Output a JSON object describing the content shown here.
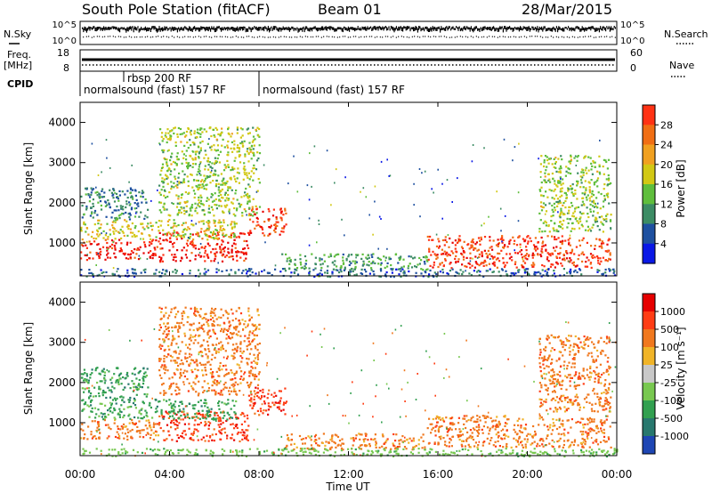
{
  "header": {
    "title": "South Pole Station (fitACF)",
    "beam": "Beam 01",
    "date": "28/Mar/2015"
  },
  "aux_panels": {
    "n_sky_label": "N.Sky",
    "n_search_label": "N.Search",
    "freq_label_line1": "Freq.",
    "freq_label_line2": "[MHz]",
    "nave_label": "Nave",
    "cpid_label": "CPID",
    "noise_left_ticks": [
      "10^5",
      "10^0"
    ],
    "noise_right_ticks": [
      "10^5",
      "10^0"
    ],
    "freq_ticks": [
      "18",
      "8"
    ],
    "nave_ticks": [
      "60",
      "0"
    ],
    "cpid_segments": [
      {
        "label": "normalsound (fast) 157 RF",
        "start_h": 0.0,
        "end_h": 1.9
      },
      {
        "label": "rbsp 200 RF",
        "start_h": 1.9,
        "end_h": 7.8
      },
      {
        "label": "normalsound (fast) 157 RF",
        "start_h": 7.8,
        "end_h": 24.0
      }
    ]
  },
  "x_axis": {
    "label": "Time UT",
    "ticks": [
      "00:00",
      "04:00",
      "08:00",
      "12:00",
      "16:00",
      "20:00",
      "00:00"
    ]
  },
  "y_axis": {
    "label": "Slant Range [km]",
    "ticks": [
      "1000",
      "2000",
      "3000",
      "4000"
    ]
  },
  "power_colorbar": {
    "label": "Power [dB]",
    "ticks": [
      "4",
      "8",
      "12",
      "16",
      "20",
      "24",
      "28"
    ],
    "colors": [
      "#0a18e6",
      "#1e50a0",
      "#3c8c64",
      "#5fbe3c",
      "#d2c814",
      "#f0a020",
      "#f06e14",
      "#ff3214",
      "#e60000"
    ]
  },
  "velocity_colorbar": {
    "label": "Velocity [m s⁻¹]",
    "ticks": [
      "1000",
      "500",
      "100",
      "25",
      "-25",
      "-100",
      "-500",
      "-1000"
    ],
    "colors": [
      "#1e46b4",
      "#28786e",
      "#32a050",
      "#78c850",
      "#c8c8c8",
      "#f0b428",
      "#f0781e",
      "#ff3c14",
      "#e60000"
    ]
  },
  "chart_data": {
    "type": "heatmap",
    "x_range_hours": [
      0,
      24
    ],
    "y_range_km": [
      180,
      4500
    ],
    "regions": [
      {
        "t0": 0.0,
        "t1": 3.5,
        "r0": 600,
        "r1": 1100,
        "power_db": 28,
        "velocity": -100
      },
      {
        "t0": 3.5,
        "t1": 7.5,
        "r0": 550,
        "r1": 1300,
        "power_db": 28,
        "velocity": -500
      },
      {
        "t0": 7.5,
        "t1": 9.2,
        "r0": 1200,
        "r1": 1900,
        "power_db": 26,
        "velocity": -500
      },
      {
        "t0": 0.0,
        "t1": 7.0,
        "r0": 1100,
        "r1": 1600,
        "power_db": 16,
        "velocity": 100
      },
      {
        "t0": 0.0,
        "t1": 3.0,
        "r0": 1600,
        "r1": 2400,
        "power_db": 8,
        "velocity": 100
      },
      {
        "t0": 3.5,
        "t1": 8.0,
        "r0": 1700,
        "r1": 3900,
        "power_db": 14,
        "velocity": -100
      },
      {
        "t0": 9.0,
        "t1": 15.5,
        "r0": 350,
        "r1": 750,
        "power_db": 10,
        "velocity": -100
      },
      {
        "t0": 15.5,
        "t1": 23.7,
        "r0": 400,
        "r1": 1200,
        "power_db": 26,
        "velocity": -100
      },
      {
        "t0": 20.5,
        "t1": 23.7,
        "r0": 1300,
        "r1": 3200,
        "power_db": 14,
        "velocity": -100
      },
      {
        "t0": 0.0,
        "t1": 24.0,
        "r0": 180,
        "r1": 380,
        "power_db": 6,
        "velocity": 25
      }
    ]
  }
}
